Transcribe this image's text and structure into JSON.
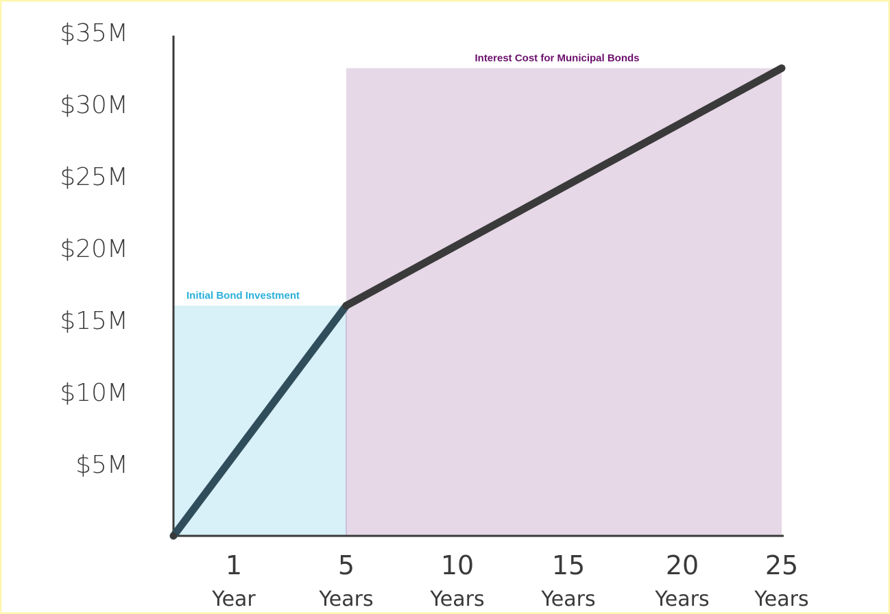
{
  "chart_data": {
    "type": "line",
    "title": "",
    "xlabel": "",
    "ylabel": "",
    "ylim": [
      0,
      35
    ],
    "grid": false,
    "y_ticks": [
      "$5M",
      "$10M",
      "$15M",
      "$20M",
      "$25M",
      "$30M",
      "$35M"
    ],
    "x_ticks": [
      {
        "number": "1",
        "unit": "Year"
      },
      {
        "number": "5",
        "unit": "Years"
      },
      {
        "number": "10",
        "unit": "Years"
      },
      {
        "number": "15",
        "unit": "Years"
      },
      {
        "number": "20",
        "unit": "Years"
      },
      {
        "number": "25",
        "unit": "Years"
      }
    ],
    "series": [
      {
        "values": [
          {
            "x": 0,
            "y": 0
          },
          {
            "x": 5,
            "y": 16
          },
          {
            "x": 25,
            "y": 32.5
          }
        ]
      }
    ],
    "regions": [
      {
        "label": "Initial Bond Investment",
        "x_from": 0,
        "x_to": 5,
        "y_to": 16
      },
      {
        "label": "Interest Cost for Municipal Bonds",
        "x_from": 5,
        "x_to": 25,
        "y_to": 32.5
      }
    ],
    "colors": {
      "line": "#3a3a3a",
      "line_initial": "#2f4d5a",
      "initial_fill": "#d8f0f8",
      "initial_label": "#2ab0d9",
      "interest_fill": "#e6d8e6",
      "interest_label": "#6b0f6b",
      "border": "#fff8b8"
    }
  }
}
